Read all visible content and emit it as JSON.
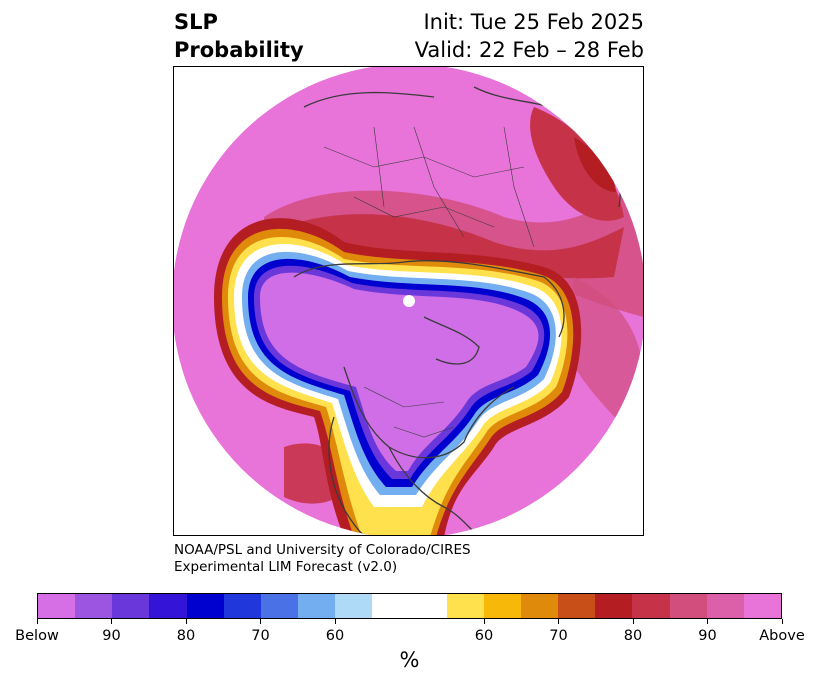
{
  "title": {
    "left_line1": "SLP",
    "left_line2": "Probability",
    "right_line1": "Init: Tue 25 Feb 2025",
    "right_line2": "Valid: 22 Feb – 28 Feb"
  },
  "credit": {
    "line1": "NOAA/PSL and University of Colorado/CIRES",
    "line2": "Experimental LIM Forecast (v2.0)"
  },
  "colorbar": {
    "unit": "%",
    "colors": [
      "#d66ee6",
      "#9c55e0",
      "#6a38da",
      "#3414d6",
      "#0000cf",
      "#2037dc",
      "#4a72e6",
      "#73aef0",
      "#aed9f7",
      "#ffffff",
      "#ffe14d",
      "#f7b80a",
      "#e08a0c",
      "#c85018",
      "#b41e22",
      "#c63349",
      "#d24e7d",
      "#db5fa9",
      "#e873d9"
    ],
    "ticks": [
      "Below",
      "90",
      "80",
      "70",
      "60",
      "60",
      "70",
      "80",
      "90",
      "Above"
    ]
  },
  "map": {
    "projection": "north-polar-stereographic",
    "colors": {
      "above_high": "#e873d9",
      "above_mid": "#d24e7d",
      "above_red": "#b41e22",
      "orange": "#e08a0c",
      "yellow": "#ffe14d",
      "below_high": "#cf6ee6",
      "below_blue": "#0000cf",
      "light_blue": "#73aef0",
      "coast": "#3b3b3b"
    }
  }
}
